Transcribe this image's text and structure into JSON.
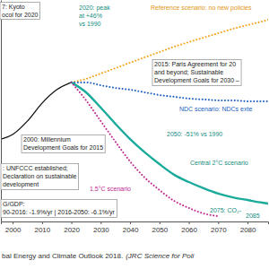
{
  "chart_data": {
    "type": "line",
    "x": [
      1996,
      2000,
      2005,
      2010,
      2015,
      2020,
      2025,
      2030,
      2035,
      2040,
      2045,
      2050,
      2055,
      2060,
      2065,
      2070,
      2075,
      2080,
      2085,
      2087
    ],
    "xlim": [
      1996,
      2087
    ],
    "xticks": [
      2000,
      2010,
      2020,
      2030,
      2040,
      2050,
      2060,
      2070,
      2080
    ],
    "ylim": [
      -5,
      95
    ],
    "tick_labels": "x",
    "grid": false,
    "series": [
      {
        "color": "#111111",
        "line_style": "solid",
        "values": [
          32.2,
          34.3,
          40.3,
          48.4,
          54.5,
          57.8,
          null,
          null,
          null,
          null,
          null,
          null,
          null,
          null,
          null,
          null,
          null,
          null,
          null,
          null
        ]
      },
      {
        "color": "#f5a623",
        "line_style": "dotted",
        "values": [
          null,
          null,
          null,
          null,
          null,
          57.8,
          59.4,
          61.8,
          64.2,
          66.7,
          69.1,
          71.5,
          73.9,
          76.0,
          78.0,
          80.0,
          82.0,
          83.7,
          85.3,
          86.1
        ]
      },
      {
        "color": "#2060c0",
        "line_style": "dotted",
        "values": [
          null,
          null,
          null,
          null,
          null,
          57.8,
          57.8,
          56.5,
          55.3,
          54.5,
          53.3,
          52.1,
          51.3,
          50.5,
          50.1,
          49.7,
          49.7,
          49.3,
          49.3,
          49.3
        ]
      },
      {
        "color": "#1aab9b",
        "line_style": "solid",
        "values": [
          null,
          null,
          null,
          null,
          null,
          57.8,
          53.3,
          46.4,
          39.1,
          32.2,
          26.2,
          20.9,
          16.1,
          12.8,
          10.0,
          7.6,
          5.9,
          4.7,
          3.5,
          3.1
        ]
      },
      {
        "color": "#c0288f",
        "line_style": "dotted",
        "values": [
          null,
          null,
          null,
          null,
          null,
          57.8,
          49.7,
          40.3,
          31.0,
          22.1,
          14.8,
          9.2,
          4.3,
          1.1,
          -1.4,
          -2.6,
          null,
          null,
          null,
          null
        ]
      }
    ],
    "annotations": [
      {
        "text": [
          "7: Kyoto",
          "ocol for 2020"
        ]
      },
      {
        "text": [
          "2020: peak",
          "at +46%",
          "vs 1990"
        ]
      },
      {
        "text": [
          "Reference scenario: no new policies"
        ]
      },
      {
        "text": [
          "2015: Paris Agreement for 20",
          "and beyond; Sustainable",
          "Development Goals for 2030 –"
        ]
      },
      {
        "text": [
          "2000: Millennium",
          "Development Goals for 2015"
        ]
      },
      {
        "text": [
          ": UNFCCC established;",
          "Declaration on sustainable",
          "development"
        ]
      },
      {
        "text": [
          "NDC scenario: NDCs exte"
        ]
      },
      {
        "text": [
          "2050: -51% vs 1990"
        ]
      },
      {
        "text": [
          "Central 2°C scenario"
        ]
      },
      {
        "text": [
          "1.5°C scenario"
        ]
      },
      {
        "text": [
          "2075: CO₂-"
        ]
      },
      {
        "text": [
          "2085"
        ]
      },
      {
        "text": [
          "G/GDP:",
          "90-2016: -1.9%/yr | 2016-2050: -6.1%/yr"
        ]
      }
    ],
    "caption": [
      "bal Energy and Climate Outlook 2018.",
      "(JRC Science for Poli"
    ]
  }
}
